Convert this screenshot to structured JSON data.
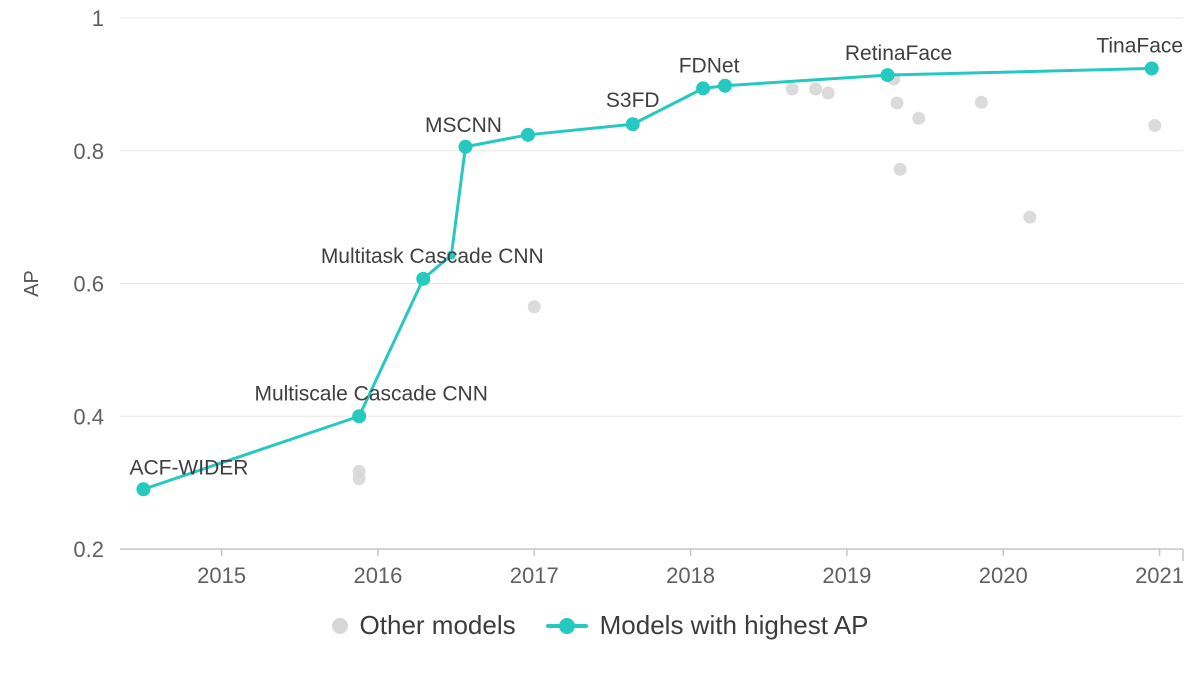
{
  "chart_data": {
    "type": "line",
    "title": "",
    "xlabel": "",
    "ylabel": "AP",
    "xlim": [
      2014.35,
      2021.15
    ],
    "ylim": [
      0.2,
      1.0
    ],
    "x_ticks": [
      2015,
      2016,
      2017,
      2018,
      2019,
      2020,
      2021
    ],
    "y_ticks": [
      0.2,
      0.4,
      0.6,
      0.8,
      1
    ],
    "grid": "horizontal",
    "colors": {
      "highlight": "#26c9c0",
      "other": "#d7d7d7",
      "grid": "#e7e7e7",
      "axis": "#c6c6c6"
    },
    "legend": {
      "position": "bottom",
      "items": [
        {
          "label": "Other models",
          "marker": "dot",
          "color": "#d7d7d7"
        },
        {
          "label": "Models with highest AP",
          "marker": "line-dot",
          "color": "#26c9c0"
        }
      ]
    },
    "series": [
      {
        "name": "Other models",
        "type": "scatter",
        "color": "#d7d7d7",
        "points": [
          {
            "year": 2015.88,
            "ap": 0.317
          },
          {
            "year": 2015.88,
            "ap": 0.306
          },
          {
            "year": 2017.0,
            "ap": 0.565
          },
          {
            "year": 2018.65,
            "ap": 0.893
          },
          {
            "year": 2018.8,
            "ap": 0.893
          },
          {
            "year": 2018.88,
            "ap": 0.887
          },
          {
            "year": 2019.3,
            "ap": 0.908
          },
          {
            "year": 2019.32,
            "ap": 0.872
          },
          {
            "year": 2019.34,
            "ap": 0.772
          },
          {
            "year": 2019.46,
            "ap": 0.849
          },
          {
            "year": 2019.86,
            "ap": 0.873
          },
          {
            "year": 2020.17,
            "ap": 0.7
          },
          {
            "year": 2020.97,
            "ap": 0.838
          }
        ]
      },
      {
        "name": "Models with highest AP",
        "type": "line",
        "color": "#26c9c0",
        "points": [
          {
            "model": "ACF-WIDER",
            "year": 2014.5,
            "ap": 0.29,
            "label_anchor": "start",
            "label_dx": -14,
            "label_dy": -15
          },
          {
            "model": "Multiscale Cascade CNN",
            "year": 2015.88,
            "ap": 0.4,
            "label_dx": 12,
            "label_dy": -16
          },
          {
            "model": "Multitask Cascade CNN",
            "year": 2016.29,
            "ap": 0.607,
            "label_dx": 9,
            "label_dy": -16
          },
          {
            "model": "",
            "year": 2016.47,
            "ap": 0.643,
            "small": true
          },
          {
            "model": "MSCNN",
            "year": 2016.56,
            "ap": 0.806,
            "label_dx": -2,
            "label_dy": -15
          },
          {
            "model": "",
            "year": 2016.96,
            "ap": 0.824
          },
          {
            "model": "S3FD",
            "year": 2017.63,
            "ap": 0.84,
            "label_dx": 0,
            "label_dy": -17
          },
          {
            "model": "FDNet",
            "year": 2018.08,
            "ap": 0.894,
            "label_dx": 6,
            "label_dy": -16
          },
          {
            "model": "",
            "year": 2018.22,
            "ap": 0.898
          },
          {
            "model": "RetinaFace",
            "year": 2019.26,
            "ap": 0.914,
            "label_dx": 11,
            "label_dy": -15
          },
          {
            "model": "TinaFace",
            "year": 2020.95,
            "ap": 0.924,
            "label_dx": -12,
            "label_dy": -16
          }
        ]
      }
    ]
  }
}
